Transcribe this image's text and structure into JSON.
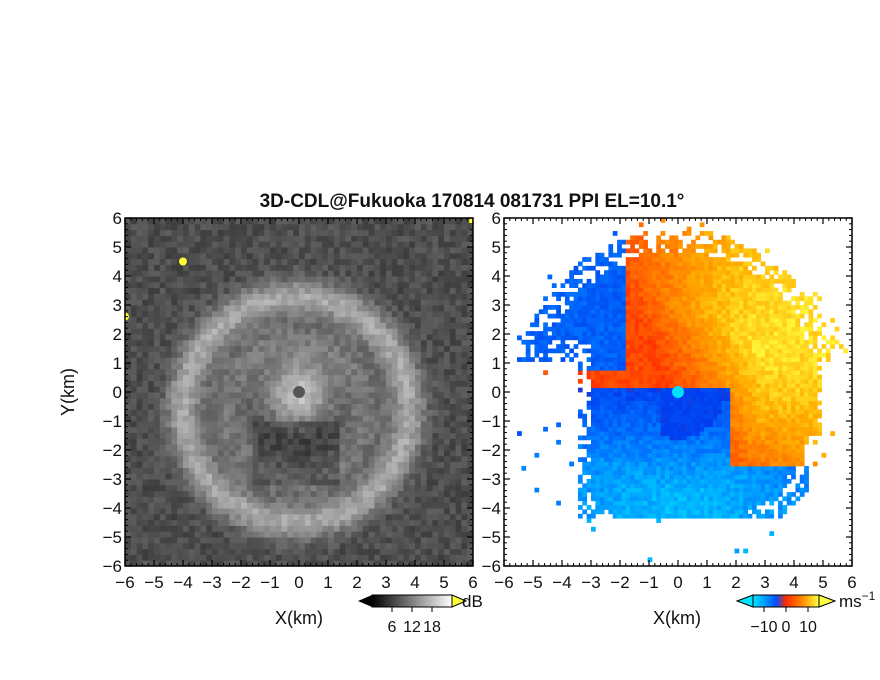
{
  "chart_data": [
    {
      "type": "heatmap",
      "title": "3D-CDL@Fukuoka 170814 081731 PPI EL=10.1°",
      "xlabel": "X(km)",
      "ylabel": "Y(km)",
      "xlim": [
        -6,
        6
      ],
      "ylim": [
        -6,
        6
      ],
      "xticks": [
        "−6",
        "−5",
        "−4",
        "−3",
        "−2",
        "−1",
        "0",
        "1",
        "2",
        "3",
        "4",
        "5",
        "6"
      ],
      "yticks": [
        "6",
        "5",
        "4",
        "3",
        "2",
        "1",
        "0",
        "−1",
        "−2",
        "−3",
        "−4",
        "−5",
        "−6"
      ],
      "colorbar": {
        "unit": "dB",
        "ticks": [
          "6",
          "12",
          "18"
        ],
        "range": [
          0,
          24
        ],
        "colors": [
          "#000000",
          "#ffffff"
        ],
        "extend_max_color": "#ffff33"
      },
      "features": {
        "center_spot": [
          0,
          0
        ],
        "ring_center": [
          -0.1,
          -0.6
        ],
        "ring_radius_km": 3.9,
        "bright_targets": [
          [
            -4.0,
            4.5
          ],
          [
            6.0,
            5.9
          ],
          [
            -6.0,
            2.6
          ]
        ]
      }
    },
    {
      "type": "heatmap",
      "xlabel": "X(km)",
      "xlim": [
        -6,
        6
      ],
      "ylim": [
        -6,
        6
      ],
      "xticks": [
        "−6",
        "−5",
        "−4",
        "−3",
        "−2",
        "−1",
        "0",
        "1",
        "2",
        "3",
        "4",
        "5",
        "6"
      ],
      "yticks": [
        "6",
        "5",
        "4",
        "3",
        "2",
        "1",
        "0",
        "−1",
        "−2",
        "−3",
        "−4",
        "−5",
        "−6"
      ],
      "colorbar": {
        "unit": "ms",
        "unit_exponent": "−1",
        "ticks": [
          "−10",
          "0",
          "10"
        ],
        "range": [
          -15,
          15
        ],
        "colors": [
          "#00e5ff",
          "#0050ff",
          "#ff2a00",
          "#ffff40"
        ]
      },
      "features": {
        "center_spot": [
          0,
          0
        ],
        "vortex_center": [
          0,
          0
        ],
        "note": "positive (red/orange/yellow) to the NE, negative (blue/cyan) to the S and W"
      }
    }
  ]
}
